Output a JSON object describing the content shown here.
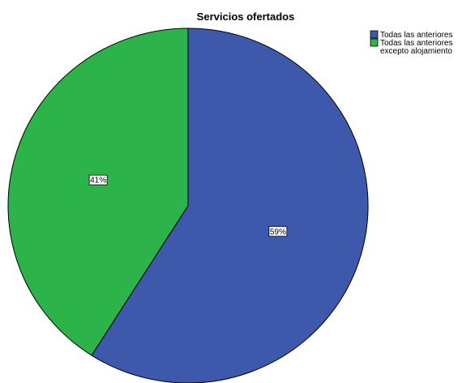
{
  "chart_data": {
    "type": "pie",
    "title": "Servicios ofertados",
    "slices": [
      {
        "label": "Todas las anteriores",
        "label_lines": [
          "Todas las anteriores"
        ],
        "value": 59,
        "value_label": "59%",
        "color": "#3e58ac"
      },
      {
        "label": "Todas las anteriores excepto alojamiento",
        "label_lines": [
          "Todas las anteriores",
          "excepto alojamiento"
        ],
        "value": 41,
        "value_label": "41%",
        "color": "#2cb34a"
      }
    ],
    "start_angle_deg": 0,
    "direction": "clockwise",
    "legend_position": "top-right"
  }
}
